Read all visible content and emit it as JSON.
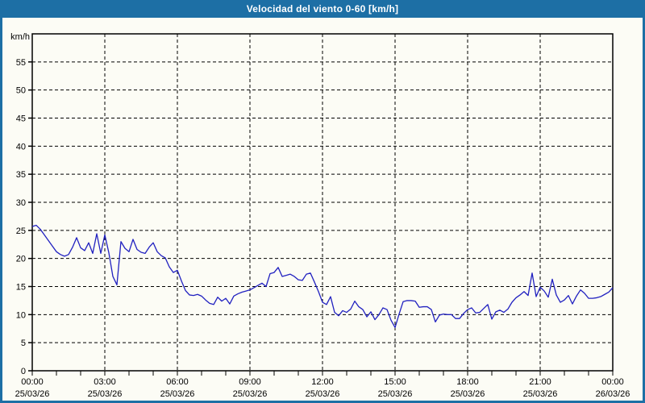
{
  "title": "Velocidad del viento 0-60 [km/h]",
  "colors": {
    "title_bg": "#1d6fa5",
    "frame": "#1d6fa5",
    "title_text": "#ffffff",
    "plot_background": "#fcfcf5",
    "line": "#2121c0",
    "grid": "#000000",
    "axis": "#000000",
    "text": "#000000"
  },
  "chart_data": {
    "type": "line",
    "title": "Velocidad del viento 0-60 [km/h]",
    "xlabel": "",
    "ylabel": "km/h",
    "ylim": [
      0,
      60
    ],
    "ytick_step": 5,
    "ytick_labels": [
      "0",
      "5",
      "10",
      "15",
      "20",
      "25",
      "30",
      "35",
      "40",
      "45",
      "50",
      "55"
    ],
    "grid": "dashed",
    "legend": "none",
    "x_span_hours": 24,
    "minor_xtick_hours": 1,
    "major_xtick_hours": 3,
    "xticks": [
      {
        "time": "00:00",
        "date": "25/03/26"
      },
      {
        "time": "03:00",
        "date": "25/03/26"
      },
      {
        "time": "06:00",
        "date": "25/03/26"
      },
      {
        "time": "09:00",
        "date": "25/03/26"
      },
      {
        "time": "12:00",
        "date": "25/03/26"
      },
      {
        "time": "15:00",
        "date": "25/03/26"
      },
      {
        "time": "18:00",
        "date": "25/03/26"
      },
      {
        "time": "21:00",
        "date": "25/03/26"
      },
      {
        "time": "00:00",
        "date": "26/03/26"
      }
    ],
    "series_name": "Velocidad del viento",
    "interval_minutes": 10,
    "start_label": "25/03/26 00:00",
    "end_label": "26/03/26 00:00",
    "values": [
      25.7,
      25.9,
      25.2,
      24.2,
      23.2,
      22.2,
      21.2,
      20.7,
      20.4,
      20.7,
      22.0,
      23.7,
      21.9,
      21.4,
      22.8,
      20.9,
      24.4,
      20.9,
      24.2,
      21.0,
      16.8,
      15.3,
      23.0,
      21.8,
      21.2,
      23.4,
      21.6,
      21.1,
      20.9,
      22.0,
      22.8,
      21.2,
      20.5,
      20.1,
      18.5,
      17.5,
      17.9,
      16.0,
      14.3,
      13.5,
      13.4,
      13.6,
      13.3,
      12.6,
      12.0,
      11.8,
      13.1,
      12.4,
      12.9,
      11.9,
      13.3,
      13.7,
      14.0,
      14.2,
      14.4,
      14.8,
      15.2,
      15.6,
      15.0,
      17.3,
      17.5,
      18.4,
      16.8,
      17.0,
      17.2,
      16.8,
      16.2,
      16.1,
      17.2,
      17.4,
      15.8,
      14.1,
      12.2,
      11.8,
      13.2,
      10.4,
      9.8,
      10.7,
      10.4,
      11.0,
      12.4,
      11.4,
      10.9,
      9.6,
      10.5,
      9.1,
      10.0,
      11.2,
      10.9,
      9.0,
      7.7,
      10.1,
      12.3,
      12.5,
      12.5,
      12.4,
      11.3,
      11.4,
      11.4,
      10.9,
      8.7,
      9.9,
      10.1,
      10.0,
      10.0,
      9.3,
      9.3,
      10.2,
      10.9,
      11.2,
      10.3,
      10.4,
      11.1,
      11.8,
      9.2,
      10.5,
      10.8,
      10.4,
      11.0,
      12.2,
      13.0,
      13.5,
      14.1,
      13.4,
      17.4,
      13.2,
      14.9,
      14.2,
      13.1,
      16.3,
      13.5,
      12.2,
      12.6,
      13.4,
      11.9,
      13.3,
      14.4,
      13.8,
      12.9,
      12.9,
      13.0,
      13.2,
      13.6,
      14.0,
      14.8
    ]
  }
}
